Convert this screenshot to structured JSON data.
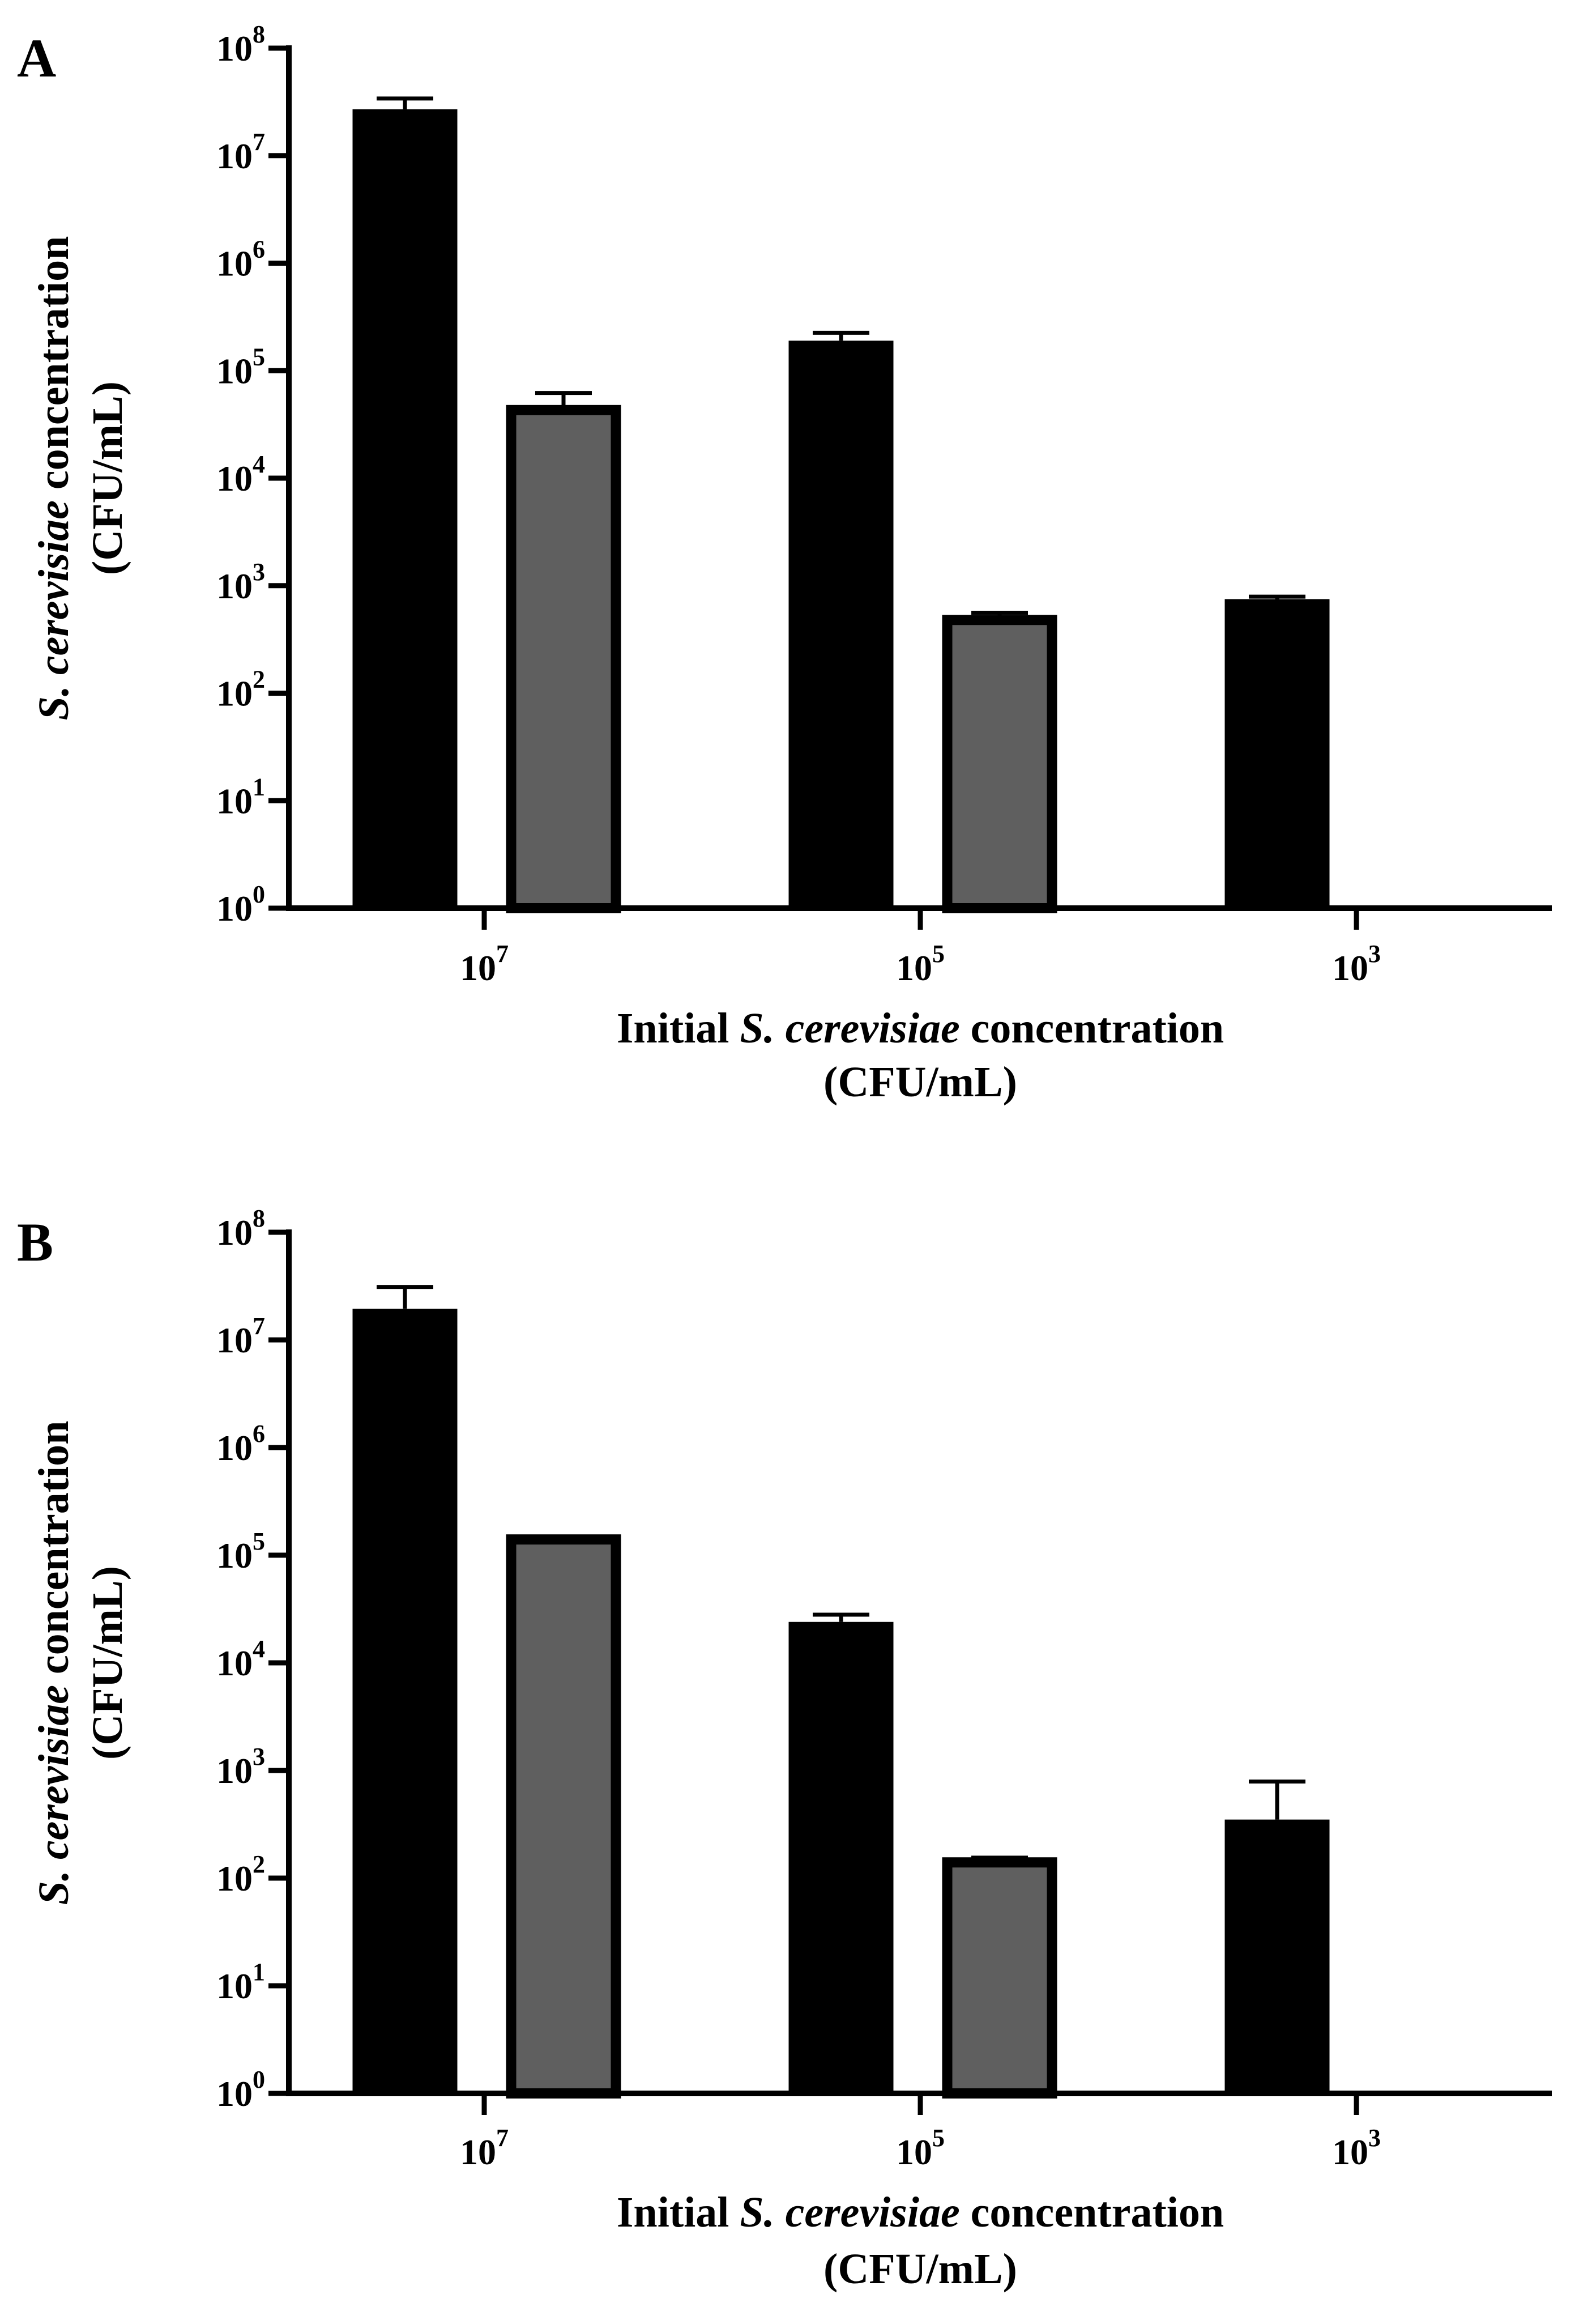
{
  "panels": [
    {
      "label": "A",
      "chart_data": {
        "type": "bar",
        "scale": "log10",
        "ylim_exponent": [
          0,
          8
        ],
        "ytick_base": "10",
        "ytick_exponents": [
          "0",
          "1",
          "2",
          "3",
          "4",
          "5",
          "6",
          "7",
          "8"
        ],
        "categories": [
          {
            "base": "10",
            "exponent": "7"
          },
          {
            "base": "10",
            "exponent": "5"
          },
          {
            "base": "10",
            "exponent": "3"
          }
        ],
        "xlabel": {
          "line1_pre": "Initial ",
          "line1_italic": "S. cerevisiae",
          "line1_post": " concentration",
          "line2": "(CFU/mL)"
        },
        "ylabel": {
          "line1_italic": "S. cerevisiae",
          "line1_post": " concentration",
          "line2": "(CFU/mL)"
        },
        "series": [
          {
            "name": "black",
            "color": "#000000",
            "values": [
              27000000,
              190000,
              750
            ],
            "err_upper": [
              34000000,
              225000,
              790
            ]
          },
          {
            "name": "gray",
            "color": "#5f5f5f",
            "values": [
              43000,
              480,
              null
            ],
            "err_upper": [
              62000,
              560,
              null
            ],
            "err_lower": [
              25000,
              null,
              null
            ]
          }
        ]
      }
    },
    {
      "label": "B",
      "chart_data": {
        "type": "bar",
        "scale": "log10",
        "ylim_exponent": [
          0,
          8
        ],
        "ytick_base": "10",
        "ytick_exponents": [
          "0",
          "1",
          "2",
          "3",
          "4",
          "5",
          "6",
          "7",
          "8"
        ],
        "categories": [
          {
            "base": "10",
            "exponent": "7"
          },
          {
            "base": "10",
            "exponent": "5"
          },
          {
            "base": "10",
            "exponent": "3"
          }
        ],
        "xlabel": {
          "line1_pre": "Initial ",
          "line1_italic": "S. cerevisiae",
          "line1_post": " concentration",
          "line2": "(CFU/mL)"
        },
        "ylabel": {
          "line1_italic": "S. cerevisiae",
          "line1_post": " concentration",
          "line2": "(CFU/mL)"
        },
        "series": [
          {
            "name": "black",
            "color": "#000000",
            "values": [
              19500000,
              24000,
              350
            ],
            "err_upper": [
              31000000,
              28000,
              790
            ]
          },
          {
            "name": "gray",
            "color": "#5f5f5f",
            "values": [
              140000,
              140,
              null
            ],
            "err_upper": [
              145000,
              155,
              null
            ]
          }
        ]
      }
    }
  ]
}
